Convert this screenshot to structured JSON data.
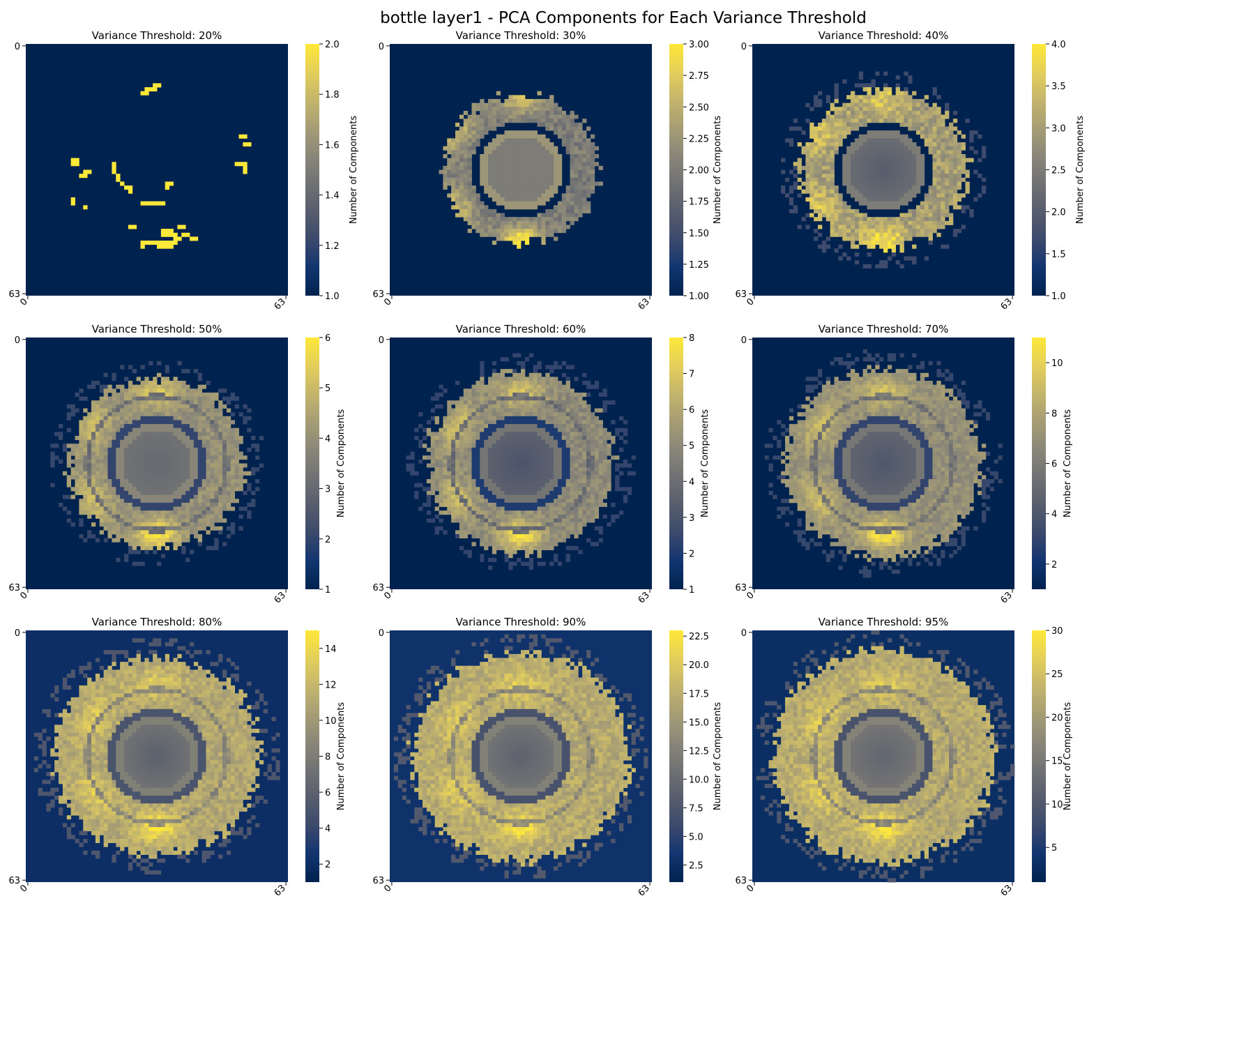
{
  "figure_title": "bottle layer1 - PCA Components for Each Variance Threshold",
  "colormap": "cividis",
  "colormap_stops": [
    "#00224e",
    "#123570",
    "#3b496c",
    "#575d6d",
    "#707173",
    "#8a8779",
    "#a69d75",
    "#c4b56c",
    "#e4cf5b",
    "#fee838"
  ],
  "chart_data": [
    {
      "type": "heatmap",
      "title": "Variance Threshold: 20%",
      "threshold": 20,
      "grid_size": 64,
      "xticks": [
        "0",
        "63"
      ],
      "yticks": [
        "0",
        "63"
      ],
      "colorbar_label": "Number of Components",
      "vmin": 1,
      "vmax": 2,
      "cb_ticks": [
        "1.0",
        "1.2",
        "1.4",
        "1.6",
        "1.8",
        "2.0"
      ],
      "cb_tick_values": [
        1.0,
        1.2,
        1.4,
        1.6,
        1.8,
        2.0
      ],
      "pattern": "sparse",
      "levels": {
        "bg": 1,
        "outer": 1,
        "inner_ring": 1,
        "center": 1,
        "hot": 2
      }
    },
    {
      "type": "heatmap",
      "title": "Variance Threshold: 30%",
      "threshold": 30,
      "grid_size": 64,
      "xticks": [
        "0",
        "63"
      ],
      "yticks": [
        "0",
        "63"
      ],
      "colorbar_label": "Number of Components",
      "vmin": 1,
      "vmax": 3,
      "cb_ticks": [
        "1.00",
        "1.25",
        "1.50",
        "1.75",
        "2.00",
        "2.25",
        "2.50",
        "2.75",
        "3.00"
      ],
      "cb_tick_values": [
        1.0,
        1.25,
        1.5,
        1.75,
        2.0,
        2.25,
        2.5,
        2.75,
        3.0
      ],
      "pattern": "rings",
      "levels": {
        "bg": 1,
        "outer": 2,
        "inner_ring": 1,
        "center": 2,
        "hot": 3
      }
    },
    {
      "type": "heatmap",
      "title": "Variance Threshold: 40%",
      "threshold": 40,
      "grid_size": 64,
      "xticks": [
        "0",
        "63"
      ],
      "yticks": [
        "0",
        "63"
      ],
      "colorbar_label": "Number of Components",
      "vmin": 1,
      "vmax": 4,
      "cb_ticks": [
        "1.0",
        "1.5",
        "2.0",
        "2.5",
        "3.0",
        "3.5",
        "4.0"
      ],
      "cb_tick_values": [
        1.0,
        1.5,
        2.0,
        2.5,
        3.0,
        3.5,
        4.0
      ],
      "pattern": "rings",
      "levels": {
        "bg": 1,
        "outer": 3,
        "inner_ring": 1,
        "center": 2,
        "hot": 4
      }
    },
    {
      "type": "heatmap",
      "title": "Variance Threshold: 50%",
      "threshold": 50,
      "grid_size": 64,
      "xticks": [
        "0",
        "63"
      ],
      "yticks": [
        "0",
        "63"
      ],
      "colorbar_label": "Number of Components",
      "vmin": 1,
      "vmax": 6,
      "cb_ticks": [
        "1",
        "2",
        "3",
        "4",
        "5",
        "6"
      ],
      "cb_tick_values": [
        1,
        2,
        3,
        4,
        5,
        6
      ],
      "pattern": "rings",
      "levels": {
        "bg": 1,
        "outer": 4,
        "inner_ring": 2,
        "center": 3,
        "hot": 6
      }
    },
    {
      "type": "heatmap",
      "title": "Variance Threshold: 60%",
      "threshold": 60,
      "grid_size": 64,
      "xticks": [
        "0",
        "63"
      ],
      "yticks": [
        "0",
        "63"
      ],
      "colorbar_label": "Number of Components",
      "vmin": 1,
      "vmax": 8,
      "cb_ticks": [
        "1",
        "2",
        "3",
        "4",
        "5",
        "6",
        "7",
        "8"
      ],
      "cb_tick_values": [
        1,
        2,
        3,
        4,
        5,
        6,
        7,
        8
      ],
      "pattern": "rings",
      "levels": {
        "bg": 1,
        "outer": 5,
        "inner_ring": 2,
        "center": 3,
        "hot": 8
      }
    },
    {
      "type": "heatmap",
      "title": "Variance Threshold: 70%",
      "threshold": 70,
      "grid_size": 64,
      "xticks": [
        "0",
        "63"
      ],
      "yticks": [
        "0",
        "63"
      ],
      "colorbar_label": "Number of Components",
      "vmin": 1,
      "vmax": 11,
      "cb_ticks": [
        "2",
        "4",
        "6",
        "8",
        "10"
      ],
      "cb_tick_values": [
        2,
        4,
        6,
        8,
        10
      ],
      "pattern": "rings",
      "levels": {
        "bg": 1,
        "outer": 7,
        "inner_ring": 3,
        "center": 4,
        "hot": 11
      }
    },
    {
      "type": "heatmap",
      "title": "Variance Threshold: 80%",
      "threshold": 80,
      "grid_size": 64,
      "xticks": [
        "0",
        "63"
      ],
      "yticks": [
        "0",
        "63"
      ],
      "colorbar_label": "Number of Components",
      "vmin": 1,
      "vmax": 15,
      "cb_ticks": [
        "2",
        "4",
        "6",
        "8",
        "10",
        "12",
        "14"
      ],
      "cb_tick_values": [
        2,
        4,
        6,
        8,
        10,
        12,
        14
      ],
      "pattern": "rings",
      "levels": {
        "bg": 2,
        "outer": 11,
        "inner_ring": 5,
        "center": 6,
        "hot": 15
      }
    },
    {
      "type": "heatmap",
      "title": "Variance Threshold: 90%",
      "threshold": 90,
      "grid_size": 64,
      "xticks": [
        "0",
        "63"
      ],
      "yticks": [
        "0",
        "63"
      ],
      "colorbar_label": "Number of Components",
      "vmin": 1,
      "vmax": 23,
      "cb_ticks": [
        "2.5",
        "5.0",
        "7.5",
        "10.0",
        "12.5",
        "15.0",
        "17.5",
        "20.0",
        "22.5"
      ],
      "cb_tick_values": [
        2.5,
        5.0,
        7.5,
        10.0,
        12.5,
        15.0,
        17.5,
        20.0,
        22.5
      ],
      "pattern": "rings",
      "levels": {
        "bg": 3,
        "outer": 17,
        "inner_ring": 7,
        "center": 9,
        "hot": 23
      }
    },
    {
      "type": "heatmap",
      "title": "Variance Threshold: 95%",
      "threshold": 95,
      "grid_size": 64,
      "xticks": [
        "0",
        "63"
      ],
      "yticks": [
        "0",
        "63"
      ],
      "colorbar_label": "Number of Components",
      "vmin": 1,
      "vmax": 30,
      "cb_ticks": [
        "5",
        "10",
        "15",
        "20",
        "25",
        "30"
      ],
      "cb_tick_values": [
        5,
        10,
        15,
        20,
        25,
        30
      ],
      "pattern": "rings",
      "levels": {
        "bg": 3,
        "outer": 22,
        "inner_ring": 9,
        "center": 12,
        "hot": 30
      }
    }
  ]
}
